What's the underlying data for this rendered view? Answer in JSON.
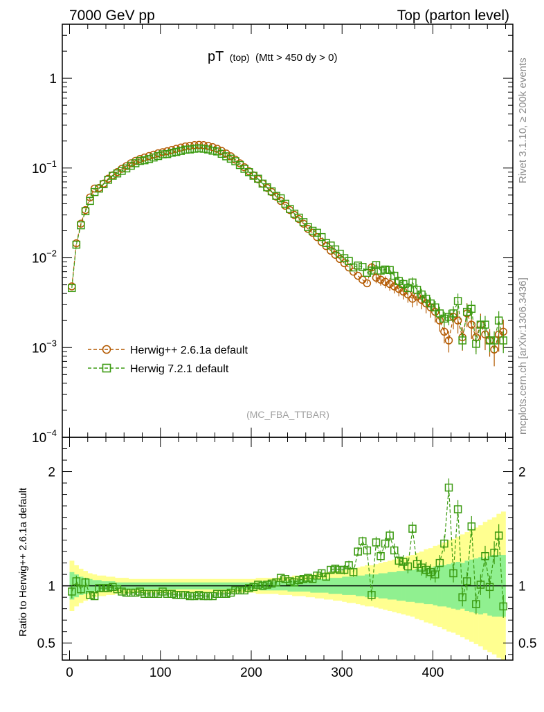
{
  "header": {
    "left": "7000 GeV pp",
    "right": "Top (parton level)"
  },
  "title": {
    "main": "pT",
    "sub": "(top)",
    "cond": "(Mtt > 450 dy > 0)"
  },
  "side_labels": {
    "rivet": "Rivet 3.1.10, ≥ 200k events",
    "mcplots": "mcplots.cern.ch [arXiv:1306.3436]"
  },
  "watermark": "(MC_FBA_TTBAR)",
  "legend": [
    {
      "label": "Herwig++ 2.6.1a default",
      "marker": "circle",
      "color": "#b35900"
    },
    {
      "label": "Herwig 7.2.1 default",
      "marker": "square",
      "color": "#3a9a10"
    }
  ],
  "ratio_ylabel": "Ratio to Herwig++ 2.6.1a default",
  "colors": {
    "herwigpp": "#b35900",
    "herwig7": "#3a9a10",
    "band_inner": "#90f090",
    "band_outer": "#ffff90"
  },
  "chart_data": {
    "type": "line",
    "xlim": [
      -8,
      488
    ],
    "x_ticks": [
      0,
      100,
      200,
      300,
      400
    ],
    "main_ylog": true,
    "main_ylim": [
      0.0001,
      4
    ],
    "main_y_ticks": [
      {
        "v": 1,
        "label": "1",
        "exp": ""
      },
      {
        "v": 0.1,
        "label": "10",
        "exp": "−1"
      },
      {
        "v": 0.01,
        "label": "10",
        "exp": "−2"
      },
      {
        "v": 0.001,
        "label": "10",
        "exp": "−3"
      },
      {
        "v": 0.0001,
        "label": "10",
        "exp": "−4"
      }
    ],
    "ratio_ylim": [
      0.35,
      2.3
    ],
    "ratio_y_ticks": [
      {
        "v": 0.5,
        "label": "0.5"
      },
      {
        "v": 1,
        "label": "1"
      },
      {
        "v": 2,
        "label": "2"
      }
    ],
    "x": [
      2.5,
      7.5,
      12.5,
      17.5,
      22.5,
      27.5,
      32.5,
      37.5,
      42.5,
      47.5,
      52.5,
      57.5,
      62.5,
      67.5,
      72.5,
      77.5,
      82.5,
      87.5,
      92.5,
      97.5,
      102.5,
      107.5,
      112.5,
      117.5,
      122.5,
      127.5,
      132.5,
      137.5,
      142.5,
      147.5,
      152.5,
      157.5,
      162.5,
      167.5,
      172.5,
      177.5,
      182.5,
      187.5,
      192.5,
      197.5,
      202.5,
      207.5,
      212.5,
      217.5,
      222.5,
      227.5,
      232.5,
      237.5,
      242.5,
      247.5,
      252.5,
      257.5,
      262.5,
      267.5,
      272.5,
      277.5,
      282.5,
      287.5,
      292.5,
      297.5,
      302.5,
      307.5,
      312.5,
      317.5,
      322.5,
      327.5,
      332.5,
      337.5,
      342.5,
      347.5,
      352.5,
      357.5,
      362.5,
      367.5,
      372.5,
      377.5,
      382.5,
      387.5,
      392.5,
      397.5,
      402.5,
      407.5,
      412.5,
      417.5,
      422.5,
      427.5,
      432.5,
      437.5,
      442.5,
      447.5,
      452.5,
      457.5,
      462.5,
      467.5,
      472.5,
      477.5
    ],
    "series": [
      {
        "name": "Herwig++ 2.6.1a default",
        "values": [
          0.0048,
          0.0145,
          0.024,
          0.034,
          0.047,
          0.059,
          0.06,
          0.067,
          0.076,
          0.083,
          0.09,
          0.098,
          0.105,
          0.113,
          0.12,
          0.126,
          0.131,
          0.136,
          0.141,
          0.146,
          0.15,
          0.154,
          0.159,
          0.164,
          0.169,
          0.174,
          0.177,
          0.18,
          0.181,
          0.18,
          0.177,
          0.171,
          0.164,
          0.155,
          0.145,
          0.135,
          0.124,
          0.113,
          0.102,
          0.092,
          0.083,
          0.075,
          0.067,
          0.06,
          0.054,
          0.048,
          0.043,
          0.038,
          0.034,
          0.03,
          0.027,
          0.024,
          0.021,
          0.019,
          0.017,
          0.015,
          0.0135,
          0.012,
          0.0108,
          0.0097,
          0.0087,
          0.0078,
          0.007,
          0.0063,
          0.0057,
          0.0052,
          0.0078,
          0.006,
          0.0057,
          0.0054,
          0.0051,
          0.0048,
          0.0045,
          0.0042,
          0.0039,
          0.0035,
          0.0037,
          0.0034,
          0.0031,
          0.0028,
          0.0025,
          0.002,
          0.0015,
          0.0012,
          0.0022,
          0.002,
          0.0013,
          0.0024,
          0.0018,
          0.0013,
          0.0018,
          0.0014,
          0.0012,
          0.00095,
          0.0014,
          0.0015
        ],
        "ratio": [
          0.95,
          1.04,
          0.97,
          1.03,
          0.92,
          0.91,
          0.98,
          0.98,
          0.98,
          0.99,
          0.97,
          0.95,
          0.94,
          0.94,
          0.94,
          0.95,
          0.93,
          0.93,
          0.93,
          0.93,
          0.95,
          0.93,
          0.93,
          0.92,
          0.92,
          0.92,
          0.91,
          0.91,
          0.92,
          0.91,
          0.91,
          0.91,
          0.93,
          0.93,
          0.93,
          0.94,
          0.96,
          0.96,
          0.96,
          0.98,
          0.99,
          1.01,
          1.0,
          1.01,
          1.02,
          1.03,
          1.07,
          1.06,
          1.04,
          1.03,
          1.05,
          1.06,
          1.07,
          1.06,
          1.09,
          1.11,
          1.08,
          1.14,
          1.15,
          1.14,
          1.14,
          1.18,
          1.12,
          1.3,
          1.39,
          1.31,
          0.92,
          1.38,
          1.26,
          1.37,
          1.44,
          1.31,
          1.22,
          1.21,
          1.17,
          1.5,
          1.19,
          1.16,
          1.14,
          1.12,
          1.1,
          1.2,
          1.37,
          1.86,
          1.11,
          1.67,
          0.9,
          1.04,
          1.52,
          0.84,
          1.01,
          1.26,
          0.99,
          1.29,
          1.44,
          0.82
        ],
        "ratio_err": [
          0.06,
          0.05,
          0.04,
          0.04,
          0.03,
          0.03,
          0.03,
          0.03,
          0.03,
          0.02,
          0.02,
          0.02,
          0.02,
          0.02,
          0.02,
          0.02,
          0.02,
          0.02,
          0.02,
          0.02,
          0.02,
          0.02,
          0.02,
          0.02,
          0.02,
          0.02,
          0.02,
          0.02,
          0.02,
          0.02,
          0.02,
          0.02,
          0.02,
          0.02,
          0.02,
          0.02,
          0.02,
          0.02,
          0.02,
          0.02,
          0.02,
          0.02,
          0.02,
          0.02,
          0.02,
          0.02,
          0.02,
          0.02,
          0.02,
          0.02,
          0.03,
          0.03,
          0.03,
          0.03,
          0.03,
          0.03,
          0.03,
          0.03,
          0.03,
          0.03,
          0.04,
          0.04,
          0.04,
          0.04,
          0.04,
          0.05,
          0.05,
          0.05,
          0.05,
          0.05,
          0.05,
          0.06,
          0.06,
          0.06,
          0.06,
          0.06,
          0.07,
          0.07,
          0.07,
          0.07,
          0.07,
          0.07,
          0.07,
          0.08,
          0.08,
          0.08,
          0.08,
          0.08,
          0.09,
          0.09,
          0.09,
          0.09,
          0.1,
          0.1,
          0.1,
          0.1
        ],
        "band_inner": [
          0.12,
          0.1,
          0.08,
          0.07,
          0.06,
          0.05,
          0.05,
          0.04,
          0.04,
          0.04,
          0.03,
          0.03,
          0.03,
          0.03,
          0.03,
          0.03,
          0.03,
          0.03,
          0.03,
          0.03,
          0.03,
          0.03,
          0.03,
          0.03,
          0.03,
          0.03,
          0.03,
          0.03,
          0.03,
          0.03,
          0.03,
          0.03,
          0.03,
          0.03,
          0.03,
          0.03,
          0.03,
          0.03,
          0.03,
          0.03,
          0.03,
          0.03,
          0.04,
          0.04,
          0.04,
          0.04,
          0.04,
          0.04,
          0.05,
          0.05,
          0.05,
          0.05,
          0.05,
          0.06,
          0.06,
          0.06,
          0.06,
          0.07,
          0.07,
          0.07,
          0.08,
          0.08,
          0.08,
          0.09,
          0.09,
          0.1,
          0.1,
          0.1,
          0.11,
          0.11,
          0.12,
          0.12,
          0.13,
          0.13,
          0.14,
          0.14,
          0.15,
          0.15,
          0.16,
          0.16,
          0.17,
          0.18,
          0.18,
          0.19,
          0.2,
          0.21,
          0.2,
          0.22,
          0.23,
          0.24,
          0.25,
          0.24,
          0.26,
          0.27,
          0.27,
          0.27
        ],
        "band_outer": [
          0.22,
          0.18,
          0.15,
          0.13,
          0.11,
          0.1,
          0.09,
          0.09,
          0.08,
          0.08,
          0.07,
          0.07,
          0.07,
          0.06,
          0.06,
          0.06,
          0.06,
          0.06,
          0.06,
          0.06,
          0.06,
          0.06,
          0.06,
          0.06,
          0.06,
          0.06,
          0.06,
          0.06,
          0.06,
          0.06,
          0.06,
          0.06,
          0.06,
          0.06,
          0.06,
          0.06,
          0.06,
          0.06,
          0.06,
          0.06,
          0.06,
          0.07,
          0.07,
          0.07,
          0.07,
          0.07,
          0.08,
          0.08,
          0.08,
          0.09,
          0.09,
          0.09,
          0.1,
          0.1,
          0.11,
          0.11,
          0.12,
          0.12,
          0.13,
          0.13,
          0.14,
          0.15,
          0.15,
          0.16,
          0.17,
          0.18,
          0.18,
          0.19,
          0.2,
          0.21,
          0.22,
          0.23,
          0.24,
          0.25,
          0.26,
          0.27,
          0.29,
          0.3,
          0.32,
          0.33,
          0.35,
          0.36,
          0.38,
          0.4,
          0.41,
          0.43,
          0.45,
          0.47,
          0.49,
          0.51,
          0.53,
          0.56,
          0.58,
          0.6,
          0.63,
          0.65
        ]
      },
      {
        "name": "Herwig 7.2.1 default",
        "values": [
          0.0046,
          0.014,
          0.023,
          0.033,
          0.043,
          0.054,
          0.059,
          0.066,
          0.074,
          0.082,
          0.087,
          0.093,
          0.099,
          0.106,
          0.113,
          0.12,
          0.122,
          0.126,
          0.131,
          0.136,
          0.142,
          0.143,
          0.148,
          0.151,
          0.155,
          0.16,
          0.161,
          0.164,
          0.166,
          0.164,
          0.161,
          0.156,
          0.153,
          0.144,
          0.135,
          0.127,
          0.119,
          0.108,
          0.098,
          0.09,
          0.082,
          0.076,
          0.067,
          0.061,
          0.055,
          0.049,
          0.046,
          0.04,
          0.035,
          0.031,
          0.028,
          0.025,
          0.022,
          0.02,
          0.019,
          0.017,
          0.0146,
          0.0137,
          0.0124,
          0.0111,
          0.0099,
          0.0092,
          0.0078,
          0.0082,
          0.0079,
          0.0068,
          0.0072,
          0.0083,
          0.0072,
          0.0074,
          0.0073,
          0.0063,
          0.0055,
          0.0051,
          0.0046,
          0.0053,
          0.0044,
          0.0039,
          0.0035,
          0.0031,
          0.0028,
          0.0024,
          0.0021,
          0.0022,
          0.0024,
          0.0033,
          0.0012,
          0.0025,
          0.0027,
          0.0011,
          0.0018,
          0.0018,
          0.0012,
          0.0012,
          0.002,
          0.0012
        ]
      }
    ]
  }
}
